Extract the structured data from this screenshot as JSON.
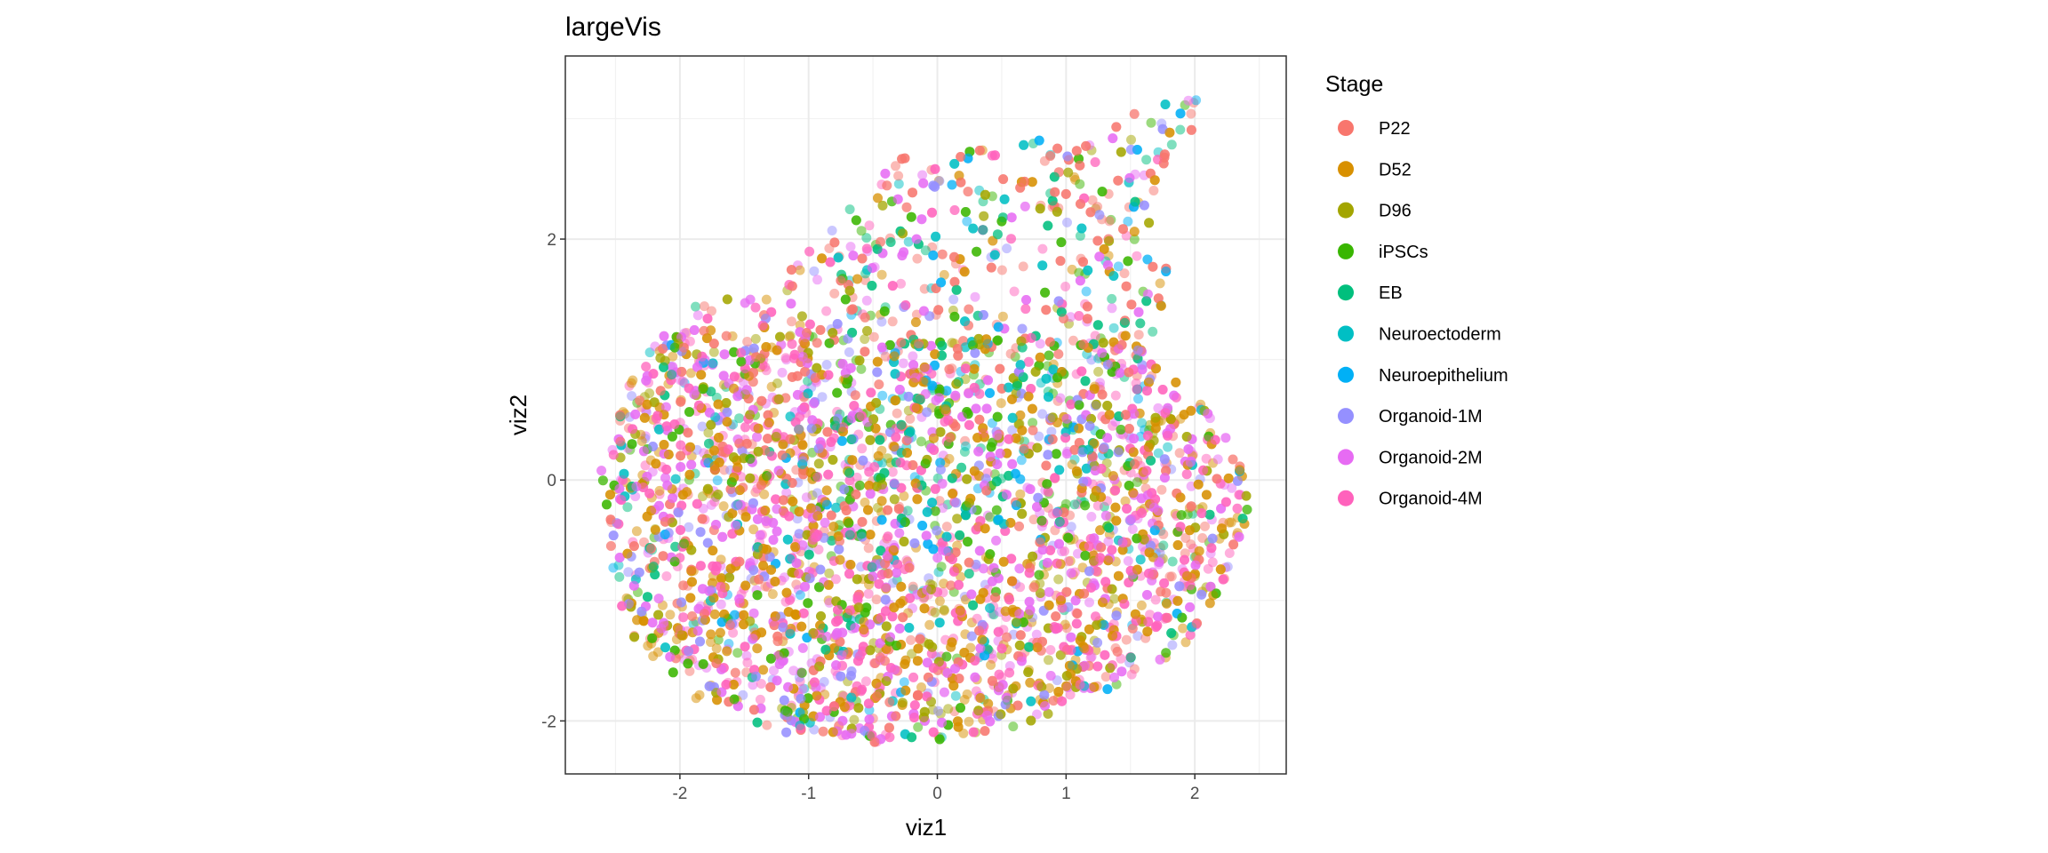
{
  "chart_data": {
    "type": "scatter",
    "title": "largeVis",
    "xlabel": "viz1",
    "ylabel": "viz2",
    "xlim": [
      -2.89,
      2.71
    ],
    "ylim": [
      -2.44,
      3.52
    ],
    "xticks": [
      -2,
      -1,
      0,
      1,
      2
    ],
    "yticks": [
      -2,
      0,
      2
    ],
    "xtick_labels": [
      "-2",
      "-1",
      "0",
      "1",
      "2"
    ],
    "ytick_labels": [
      "-2",
      "0",
      "2"
    ],
    "grid": true,
    "point_alpha": 0.5,
    "legend": {
      "title": "Stage",
      "placement": "right",
      "entries": [
        {
          "label": "P22",
          "color": "#F8766D"
        },
        {
          "label": "D52",
          "color": "#D89000"
        },
        {
          "label": "D96",
          "color": "#A3A500"
        },
        {
          "label": "iPSCs",
          "color": "#39B600"
        },
        {
          "label": "EB",
          "color": "#00BF7D"
        },
        {
          "label": "Neuroectoderm",
          "color": "#00BFC4"
        },
        {
          "label": "Neuroepithelium",
          "color": "#00B0F6"
        },
        {
          "label": "Organoid-1M",
          "color": "#9590FF"
        },
        {
          "label": "Organoid-2M",
          "color": "#E76BF3"
        },
        {
          "label": "Organoid-4M",
          "color": "#FF62BC"
        }
      ]
    },
    "point_cloud_hull": [
      [
        -2.65,
        0.2
      ],
      [
        -2.3,
        1.0
      ],
      [
        -1.9,
        1.45
      ],
      [
        -1.2,
        1.7
      ],
      [
        -0.8,
        2.2
      ],
      [
        -0.3,
        2.7
      ],
      [
        0.5,
        2.8
      ],
      [
        1.2,
        2.85
      ],
      [
        1.5,
        3.1
      ],
      [
        2.0,
        3.25
      ],
      [
        2.05,
        2.9
      ],
      [
        1.7,
        2.5
      ],
      [
        1.8,
        1.6
      ],
      [
        1.6,
        1.0
      ],
      [
        2.0,
        0.75
      ],
      [
        2.3,
        0.25
      ],
      [
        2.45,
        -0.15
      ],
      [
        2.3,
        -0.7
      ],
      [
        2.1,
        -1.2
      ],
      [
        1.7,
        -1.55
      ],
      [
        1.2,
        -1.8
      ],
      [
        0.5,
        -2.1
      ],
      [
        -0.3,
        -2.2
      ],
      [
        -1.2,
        -2.1
      ],
      [
        -1.9,
        -1.8
      ],
      [
        -2.4,
        -1.3
      ],
      [
        -2.55,
        -0.6
      ]
    ],
    "approx_point_count": 6500
  }
}
